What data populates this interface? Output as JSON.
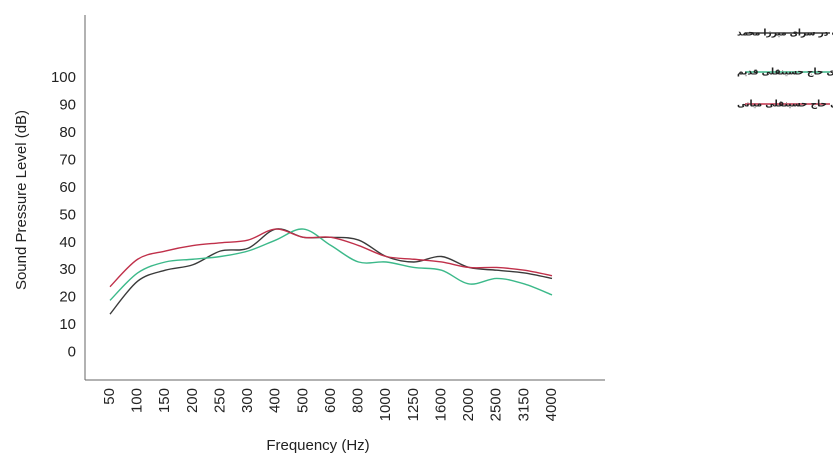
{
  "chart_data": {
    "type": "line",
    "xlabel": "Frequency (Hz)",
    "ylabel": "Sound Pressure Level (dB)",
    "categories": [
      "50",
      "100",
      "150",
      "200",
      "250",
      "300",
      "400",
      "500",
      "600",
      "800",
      "1000",
      "1250",
      "1600",
      "2000",
      "2500",
      "3150",
      "4000"
    ],
    "series": [
      {
        "name": "میانگین مقادیر میانگینی تراز فشار صوت در سرای میرزا محمد",
        "color": "#3a3a3a",
        "values": [
          14,
          26,
          30,
          32,
          37,
          38,
          45,
          42,
          42,
          41,
          35,
          33,
          35,
          31,
          30,
          29,
          27
        ]
      },
      {
        "name": "میانگین مقادیر میانگینی تراز فشار صوت در سرای حاج حسینقلی قدیم",
        "color": "#3cb98a",
        "values": [
          19,
          29,
          33,
          34,
          35,
          37,
          41,
          45,
          39,
          33,
          33,
          31,
          30,
          25,
          27,
          25,
          21
        ]
      },
      {
        "name": "میانگین مقادیر میانگینی تراز فشار صوت در سرای حاج حسینقلی میانی",
        "color": "#c0304a",
        "values": [
          24,
          34,
          37,
          39,
          40,
          41,
          45,
          42,
          42,
          39,
          35,
          34,
          33,
          31,
          31,
          30,
          28
        ]
      }
    ],
    "ylim": [
      -10,
      123
    ],
    "yticks": [
      0,
      10,
      20,
      30,
      40,
      50,
      60,
      70,
      80,
      90,
      100
    ],
    "grid": false
  }
}
